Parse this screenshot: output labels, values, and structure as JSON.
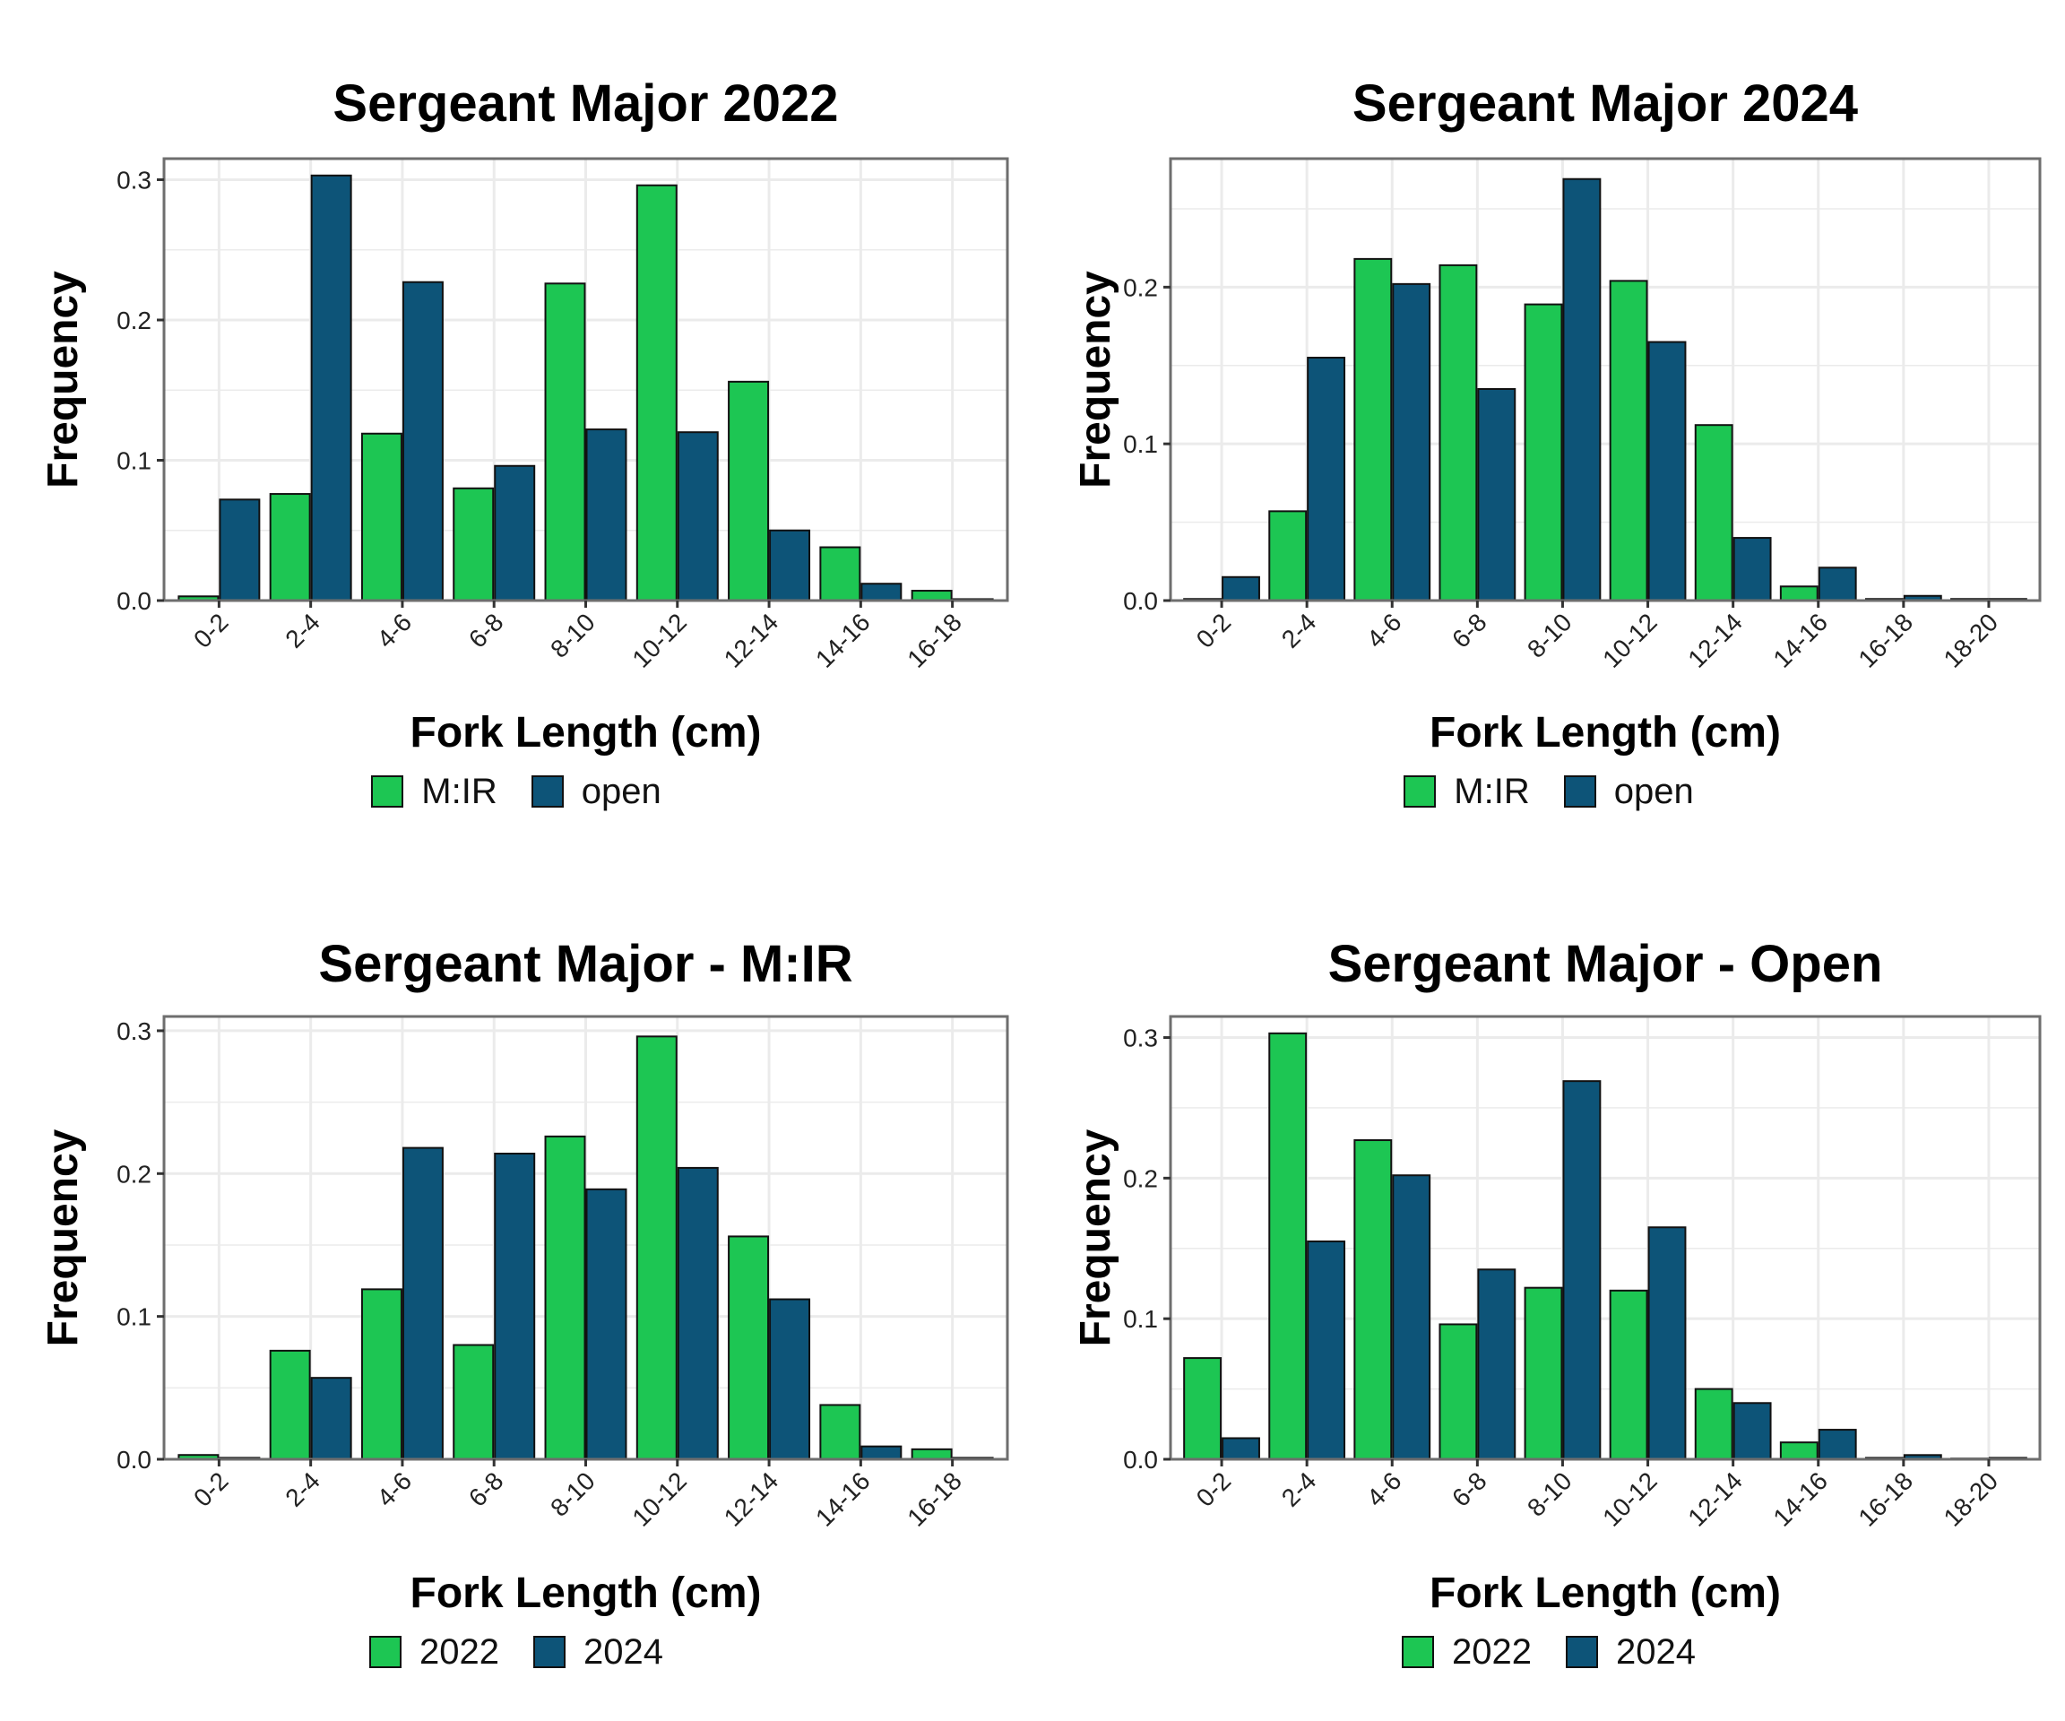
{
  "colors": {
    "green": "#1dc653",
    "blue": "#0d5478",
    "grid": "#ebebeb",
    "frame": "#6e6e6e",
    "bar_stroke": "#111111"
  },
  "chart_data": [
    {
      "type": "bar",
      "title": "Sergeant Major 2022",
      "xlabel": "Fork Length (cm)",
      "ylabel": "Frequency",
      "categories": [
        "0-2",
        "2-4",
        "4-6",
        "6-8",
        "8-10",
        "10-12",
        "12-14",
        "14-16",
        "16-18"
      ],
      "series": [
        {
          "name": "M:IR",
          "color": "#1dc653",
          "values": [
            0.003,
            0.076,
            0.119,
            0.08,
            0.226,
            0.296,
            0.156,
            0.038,
            0.007
          ]
        },
        {
          "name": "open",
          "color": "#0d5478",
          "values": [
            0.072,
            0.303,
            0.227,
            0.096,
            0.122,
            0.12,
            0.05,
            0.012,
            0.001
          ]
        }
      ],
      "ylim": [
        0,
        0.315
      ],
      "yticks": [
        0.0,
        0.1,
        0.2,
        0.3
      ],
      "ytick_labels": [
        "0.0",
        "0.1",
        "0.2",
        "0.3"
      ],
      "grid": true,
      "legend_position": "bottom"
    },
    {
      "type": "bar",
      "title": "Sergeant Major 2024",
      "xlabel": "Fork Length (cm)",
      "ylabel": "Frequency",
      "categories": [
        "0-2",
        "2-4",
        "4-6",
        "6-8",
        "8-10",
        "10-12",
        "12-14",
        "14-16",
        "16-18",
        "18-20"
      ],
      "series": [
        {
          "name": "M:IR",
          "color": "#1dc653",
          "values": [
            0.001,
            0.057,
            0.218,
            0.214,
            0.189,
            0.204,
            0.112,
            0.009,
            0.001,
            0.001
          ]
        },
        {
          "name": "open",
          "color": "#0d5478",
          "values": [
            0.015,
            0.155,
            0.202,
            0.135,
            0.269,
            0.165,
            0.04,
            0.021,
            0.003,
            0.001
          ]
        }
      ],
      "ylim": [
        0,
        0.282
      ],
      "yticks": [
        0.0,
        0.1,
        0.2
      ],
      "ytick_labels": [
        "0.0",
        "0.1",
        "0.2"
      ],
      "grid": true,
      "legend_position": "bottom"
    },
    {
      "type": "bar",
      "title": "Sergeant Major - M:IR",
      "xlabel": "Fork Length (cm)",
      "ylabel": "Frequency",
      "categories": [
        "0-2",
        "2-4",
        "4-6",
        "6-8",
        "8-10",
        "10-12",
        "12-14",
        "14-16",
        "16-18"
      ],
      "series": [
        {
          "name": "2022",
          "color": "#1dc653",
          "values": [
            0.003,
            0.076,
            0.119,
            0.08,
            0.226,
            0.296,
            0.156,
            0.038,
            0.007
          ]
        },
        {
          "name": "2024",
          "color": "#0d5478",
          "values": [
            0.001,
            0.057,
            0.218,
            0.214,
            0.189,
            0.204,
            0.112,
            0.009,
            0.001
          ]
        }
      ],
      "ylim": [
        0,
        0.31
      ],
      "yticks": [
        0.0,
        0.1,
        0.2,
        0.3
      ],
      "ytick_labels": [
        "0.0",
        "0.1",
        "0.2",
        "0.3"
      ],
      "grid": true,
      "legend_position": "bottom"
    },
    {
      "type": "bar",
      "title": "Sergeant Major - Open",
      "xlabel": "Fork Length (cm)",
      "ylabel": "Frequency",
      "categories": [
        "0-2",
        "2-4",
        "4-6",
        "6-8",
        "8-10",
        "10-12",
        "12-14",
        "14-16",
        "16-18",
        "18-20"
      ],
      "series": [
        {
          "name": "2022",
          "color": "#1dc653",
          "values": [
            0.072,
            0.303,
            0.227,
            0.096,
            0.122,
            0.12,
            0.05,
            0.012,
            0.001,
            0.0005
          ]
        },
        {
          "name": "2024",
          "color": "#0d5478",
          "values": [
            0.015,
            0.155,
            0.202,
            0.135,
            0.269,
            0.165,
            0.04,
            0.021,
            0.003,
            0.001
          ]
        }
      ],
      "ylim": [
        0,
        0.315
      ],
      "yticks": [
        0.0,
        0.1,
        0.2,
        0.3
      ],
      "ytick_labels": [
        "0.0",
        "0.1",
        "0.2",
        "0.3"
      ],
      "grid": true,
      "legend_position": "bottom"
    }
  ]
}
